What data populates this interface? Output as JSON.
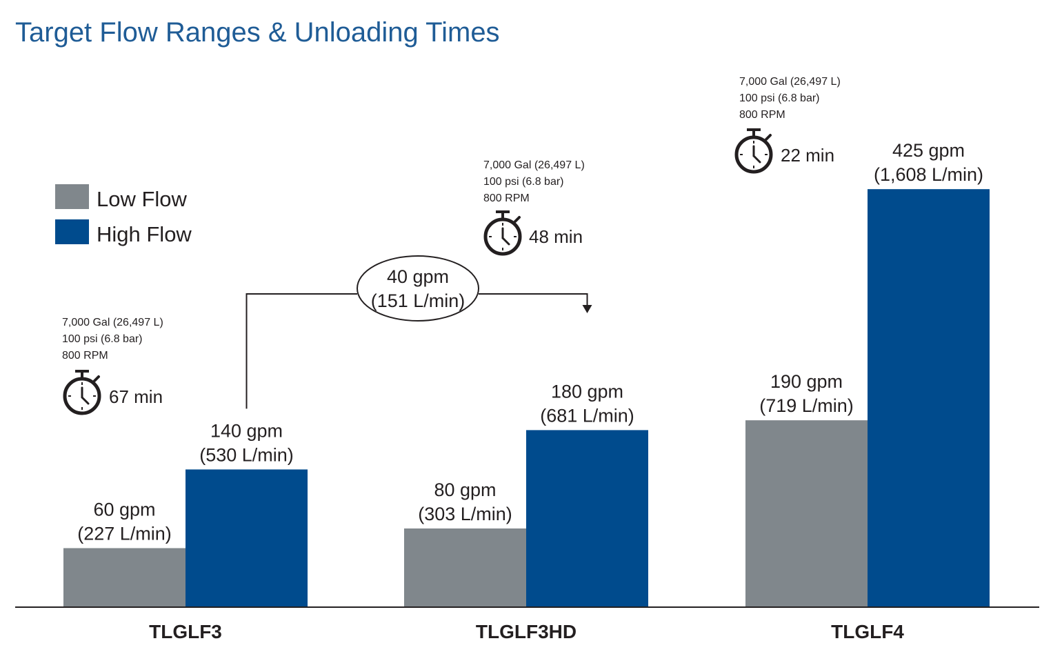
{
  "chart_data": {
    "type": "bar",
    "title": "Target Flow Ranges & Unloading Times",
    "categories": [
      "TLGLF3",
      "TLGLF3HD",
      "TLGLF4"
    ],
    "series": [
      {
        "name": "Low Flow",
        "color": "#80878c",
        "values": [
          60,
          80,
          190
        ],
        "labels": [
          [
            "60 gpm",
            "(227 L/min)"
          ],
          [
            "80 gpm",
            "(303 L/min)"
          ],
          [
            "190 gpm",
            "(719 L/min)"
          ]
        ]
      },
      {
        "name": "High Flow",
        "color": "#004b8d",
        "values": [
          140,
          180,
          425
        ],
        "labels": [
          [
            "140 gpm",
            "(530 L/min)"
          ],
          [
            "180 gpm",
            "(681 L/min)"
          ],
          [
            "425 gpm",
            "(1,608 L/min)"
          ]
        ]
      }
    ],
    "ylim": [
      0,
      450
    ],
    "grid": false,
    "legend_position": "top-left",
    "specs": [
      {
        "lines": [
          "7,000 Gal (26,497 L)",
          "100 psi (6.8 bar)",
          "800 RPM"
        ],
        "time": "67 min"
      },
      {
        "lines": [
          "7,000 Gal (26,497 L)",
          "100 psi (6.8 bar)",
          "800 RPM"
        ],
        "time": "48 min"
      },
      {
        "lines": [
          "7,000 Gal (26,497 L)",
          "100 psi (6.8 bar)",
          "800 RPM"
        ],
        "time": "22 min"
      }
    ],
    "annotation": {
      "from": "TLGLF3",
      "to": "TLGLF3HD",
      "lines": [
        "40 gpm",
        "(151 L/min)"
      ],
      "value": 40
    }
  },
  "icons": {
    "timer": "stopwatch-icon"
  }
}
